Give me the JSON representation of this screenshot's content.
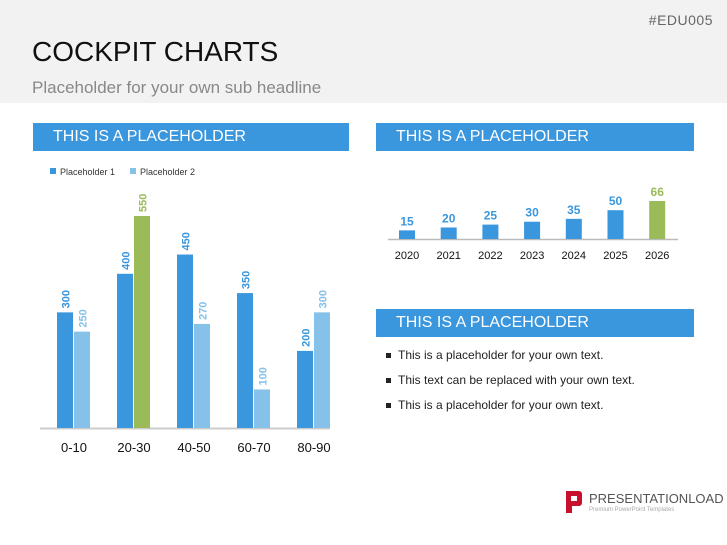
{
  "code": "#EDU005",
  "title": "COCKPIT CHARTS",
  "subtitle": "Placeholder for your own sub headline",
  "panels": [
    "THIS IS A PLACEHOLDER",
    "THIS IS A PLACEHOLDER",
    "THIS IS A PLACEHOLDER"
  ],
  "bullets": [
    "This is a placeholder for your own text.",
    "This text can be replaced with your own text.",
    "This is a placeholder for your own text."
  ],
  "logo": {
    "name": "PRESENTATIONLOAD",
    "tagline": "Premium PowerPoint Templates"
  },
  "colors": {
    "blue": "#3a96dd",
    "light": "#85c1e9",
    "green": "#9bbb59"
  },
  "chart_data": [
    {
      "type": "bar",
      "legend_position": "top-left",
      "categories": [
        "0-10",
        "20-30",
        "40-50",
        "60-70",
        "80-90"
      ],
      "series": [
        {
          "name": "Placeholder 1",
          "values": [
            300,
            400,
            450,
            350,
            200
          ]
        },
        {
          "name": "Placeholder 2",
          "values": [
            250,
            550,
            270,
            100,
            300
          ]
        }
      ],
      "highlight": {
        "series": 1,
        "index": 1,
        "color": "#9bbb59"
      },
      "grid": false
    },
    {
      "type": "bar",
      "categories": [
        "2020",
        "2021",
        "2022",
        "2023",
        "2024",
        "2025",
        "2026"
      ],
      "values": [
        15,
        20,
        25,
        30,
        35,
        50,
        66
      ],
      "highlight": {
        "index": 6,
        "color": "#9bbb59"
      },
      "grid": false
    }
  ]
}
